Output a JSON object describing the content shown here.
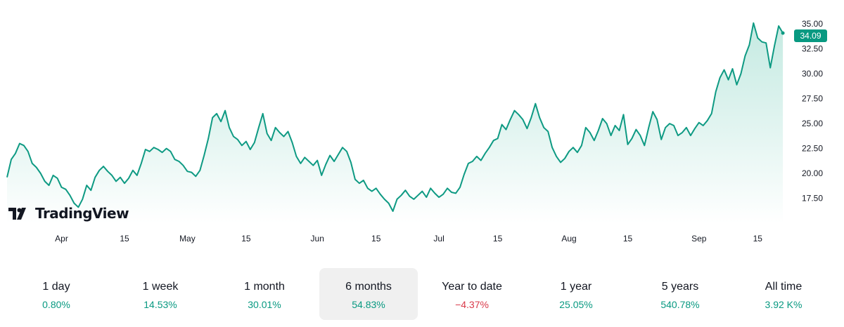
{
  "brand": {
    "logo_text": "TradingView"
  },
  "colors": {
    "line": "#0e9a83",
    "area_top": "#bfe8df",
    "area_bottom": "#ffffff",
    "positive": "#089981",
    "negative": "#d93a4a",
    "active_bg": "#f0f0f0"
  },
  "last_price": "34.09",
  "chart_data": {
    "type": "area",
    "title": "",
    "xlabel": "",
    "ylabel": "",
    "ylim": [
      15.0,
      36.0
    ],
    "y_ticks": [
      "17.50",
      "20.00",
      "22.50",
      "25.00",
      "27.50",
      "30.00",
      "32.50",
      "35.00"
    ],
    "x_ticks": [
      {
        "label": "Apr",
        "day": 13
      },
      {
        "label": "15",
        "day": 28
      },
      {
        "label": "May",
        "day": 43
      },
      {
        "label": "15",
        "day": 57
      },
      {
        "label": "Jun",
        "day": 74
      },
      {
        "label": "15",
        "day": 88
      },
      {
        "label": "Jul",
        "day": 103
      },
      {
        "label": "15",
        "day": 117
      },
      {
        "label": "Aug",
        "day": 134
      },
      {
        "label": "15",
        "day": 148
      },
      {
        "label": "Sep",
        "day": 165
      },
      {
        "label": "15",
        "day": 179
      }
    ],
    "x_range": [
      0,
      187
    ],
    "series": [
      {
        "name": "price",
        "points": [
          [
            0,
            19.6
          ],
          [
            1,
            21.4
          ],
          [
            2,
            22.0
          ],
          [
            3,
            23.0
          ],
          [
            4,
            22.8
          ],
          [
            5,
            22.2
          ],
          [
            6,
            21.0
          ],
          [
            7,
            20.6
          ],
          [
            8,
            20.0
          ],
          [
            9,
            19.2
          ],
          [
            10,
            18.8
          ],
          [
            11,
            19.8
          ],
          [
            12,
            19.5
          ],
          [
            13,
            18.6
          ],
          [
            14,
            18.4
          ],
          [
            15,
            17.8
          ],
          [
            16,
            17.0
          ],
          [
            17,
            16.6
          ],
          [
            18,
            17.4
          ],
          [
            19,
            18.8
          ],
          [
            20,
            18.3
          ],
          [
            21,
            19.6
          ],
          [
            22,
            20.3
          ],
          [
            23,
            20.7
          ],
          [
            24,
            20.2
          ],
          [
            25,
            19.8
          ],
          [
            26,
            19.2
          ],
          [
            27,
            19.6
          ],
          [
            28,
            19.0
          ],
          [
            29,
            19.5
          ],
          [
            30,
            20.3
          ],
          [
            31,
            19.8
          ],
          [
            32,
            21.0
          ],
          [
            33,
            22.4
          ],
          [
            34,
            22.2
          ],
          [
            35,
            22.6
          ],
          [
            36,
            22.4
          ],
          [
            37,
            22.1
          ],
          [
            38,
            22.5
          ],
          [
            39,
            22.2
          ],
          [
            40,
            21.4
          ],
          [
            41,
            21.2
          ],
          [
            42,
            20.8
          ],
          [
            43,
            20.2
          ],
          [
            44,
            20.1
          ],
          [
            45,
            19.7
          ],
          [
            46,
            20.3
          ],
          [
            47,
            21.8
          ],
          [
            48,
            23.5
          ],
          [
            49,
            25.6
          ],
          [
            50,
            26.0
          ],
          [
            51,
            25.2
          ],
          [
            52,
            26.3
          ],
          [
            53,
            24.6
          ],
          [
            54,
            23.7
          ],
          [
            55,
            23.4
          ],
          [
            56,
            22.8
          ],
          [
            57,
            23.2
          ],
          [
            58,
            22.4
          ],
          [
            59,
            23.1
          ],
          [
            60,
            24.6
          ],
          [
            61,
            26.0
          ],
          [
            62,
            24.0
          ],
          [
            63,
            23.3
          ],
          [
            64,
            24.6
          ],
          [
            65,
            24.1
          ],
          [
            66,
            23.7
          ],
          [
            67,
            24.2
          ],
          [
            68,
            23.1
          ],
          [
            69,
            21.7
          ],
          [
            70,
            21.0
          ],
          [
            71,
            21.6
          ],
          [
            72,
            21.2
          ],
          [
            73,
            20.8
          ],
          [
            74,
            21.3
          ],
          [
            75,
            19.8
          ],
          [
            76,
            20.9
          ],
          [
            77,
            21.8
          ],
          [
            78,
            21.2
          ],
          [
            79,
            21.9
          ],
          [
            80,
            22.6
          ],
          [
            81,
            22.2
          ],
          [
            82,
            21.1
          ],
          [
            83,
            19.4
          ],
          [
            84,
            19.0
          ],
          [
            85,
            19.3
          ],
          [
            86,
            18.5
          ],
          [
            87,
            18.2
          ],
          [
            88,
            18.5
          ],
          [
            89,
            17.9
          ],
          [
            90,
            17.4
          ],
          [
            91,
            17.0
          ],
          [
            92,
            16.2
          ],
          [
            93,
            17.4
          ],
          [
            94,
            17.8
          ],
          [
            95,
            18.3
          ],
          [
            96,
            17.7
          ],
          [
            97,
            17.4
          ],
          [
            98,
            17.8
          ],
          [
            99,
            18.2
          ],
          [
            100,
            17.6
          ],
          [
            101,
            18.5
          ],
          [
            102,
            18.0
          ],
          [
            103,
            17.6
          ],
          [
            104,
            17.9
          ],
          [
            105,
            18.5
          ],
          [
            106,
            18.1
          ],
          [
            107,
            18.0
          ],
          [
            108,
            18.6
          ],
          [
            109,
            19.9
          ],
          [
            110,
            21.0
          ],
          [
            111,
            21.2
          ],
          [
            112,
            21.7
          ],
          [
            113,
            21.3
          ],
          [
            114,
            22.0
          ],
          [
            115,
            22.6
          ],
          [
            116,
            23.3
          ],
          [
            117,
            23.5
          ],
          [
            118,
            24.9
          ],
          [
            119,
            24.4
          ],
          [
            120,
            25.4
          ],
          [
            121,
            26.3
          ],
          [
            122,
            25.9
          ],
          [
            123,
            25.4
          ],
          [
            124,
            24.5
          ],
          [
            125,
            25.6
          ],
          [
            126,
            27.0
          ],
          [
            127,
            25.6
          ],
          [
            128,
            24.6
          ],
          [
            129,
            24.2
          ],
          [
            130,
            22.6
          ],
          [
            131,
            21.7
          ],
          [
            132,
            21.1
          ],
          [
            133,
            21.5
          ],
          [
            134,
            22.2
          ],
          [
            135,
            22.6
          ],
          [
            136,
            22.1
          ],
          [
            137,
            22.8
          ],
          [
            138,
            24.6
          ],
          [
            139,
            24.1
          ],
          [
            140,
            23.3
          ],
          [
            141,
            24.3
          ],
          [
            142,
            25.5
          ],
          [
            143,
            25.0
          ],
          [
            144,
            23.8
          ],
          [
            145,
            24.8
          ],
          [
            146,
            24.3
          ],
          [
            147,
            25.9
          ],
          [
            148,
            22.9
          ],
          [
            149,
            23.5
          ],
          [
            150,
            24.4
          ],
          [
            151,
            23.8
          ],
          [
            152,
            22.8
          ],
          [
            153,
            24.6
          ],
          [
            154,
            26.2
          ],
          [
            155,
            25.4
          ],
          [
            156,
            23.4
          ],
          [
            157,
            24.6
          ],
          [
            158,
            25.0
          ],
          [
            159,
            24.8
          ],
          [
            160,
            23.8
          ],
          [
            161,
            24.1
          ],
          [
            162,
            24.6
          ],
          [
            163,
            23.8
          ],
          [
            164,
            24.5
          ],
          [
            165,
            25.1
          ],
          [
            166,
            24.8
          ],
          [
            167,
            25.3
          ],
          [
            168,
            26.0
          ],
          [
            169,
            28.2
          ],
          [
            170,
            29.6
          ],
          [
            171,
            30.4
          ],
          [
            172,
            29.4
          ],
          [
            173,
            30.5
          ],
          [
            174,
            28.9
          ],
          [
            175,
            30.0
          ],
          [
            176,
            31.8
          ],
          [
            177,
            32.9
          ],
          [
            178,
            35.1
          ],
          [
            179,
            33.6
          ],
          [
            180,
            33.2
          ],
          [
            181,
            33.1
          ],
          [
            182,
            30.6
          ],
          [
            183,
            32.8
          ],
          [
            184,
            34.8
          ],
          [
            185,
            34.09
          ]
        ]
      }
    ]
  },
  "periods": [
    {
      "label": "1 day",
      "value": "0.80%",
      "sign": "pos"
    },
    {
      "label": "1 week",
      "value": "14.53%",
      "sign": "pos"
    },
    {
      "label": "1 month",
      "value": "30.01%",
      "sign": "pos"
    },
    {
      "label": "6 months",
      "value": "54.83%",
      "sign": "pos",
      "active": true
    },
    {
      "label": "Year to date",
      "value": "−4.37%",
      "sign": "neg"
    },
    {
      "label": "1 year",
      "value": "25.05%",
      "sign": "pos"
    },
    {
      "label": "5 years",
      "value": "540.78%",
      "sign": "pos"
    },
    {
      "label": "All time",
      "value": "3.92 K%",
      "sign": "pos"
    }
  ]
}
